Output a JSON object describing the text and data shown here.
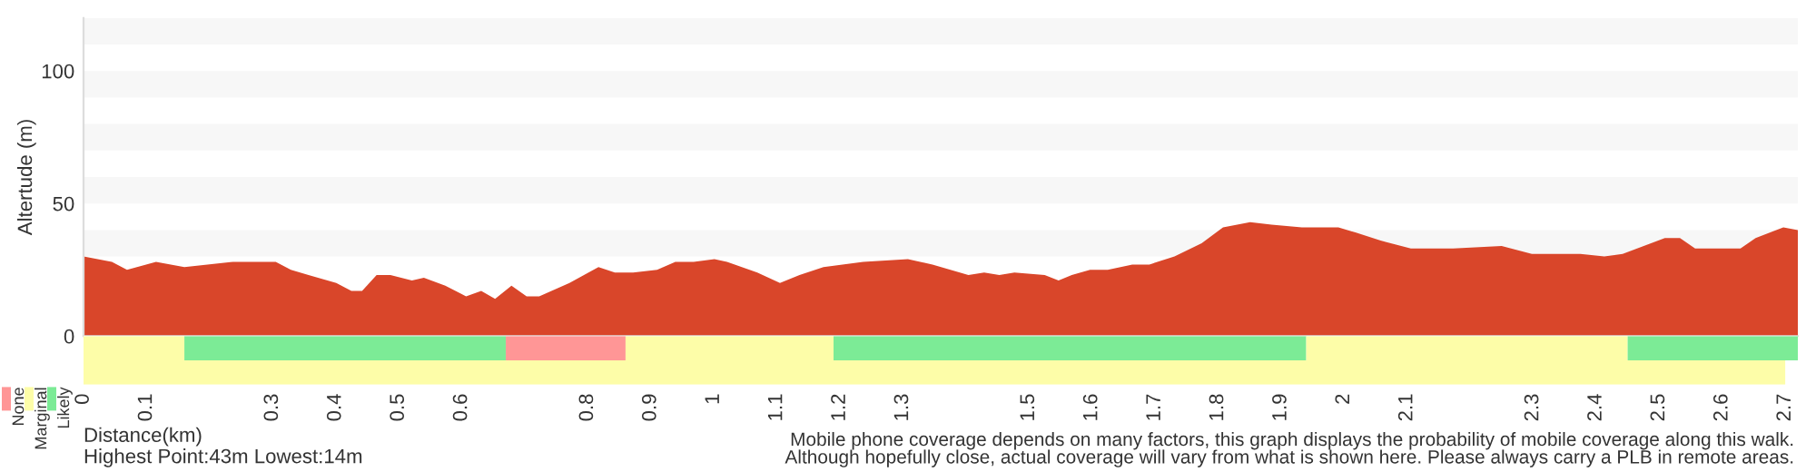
{
  "chart_data": [
    {
      "type": "area",
      "ylabel": "Altertude (m)",
      "xlim": [
        0,
        2.72
      ],
      "ylim": [
        0,
        120
      ],
      "yticks": [
        0,
        50,
        100
      ],
      "tick_labels": "y",
      "grid": false,
      "x": [
        0,
        0.045,
        0.069,
        0.115,
        0.16,
        0.237,
        0.305,
        0.329,
        0.357,
        0.401,
        0.425,
        0.442,
        0.465,
        0.487,
        0.521,
        0.54,
        0.574,
        0.607,
        0.631,
        0.653,
        0.679,
        0.703,
        0.723,
        0.771,
        0.817,
        0.843,
        0.872,
        0.91,
        0.939,
        0.968,
        1.001,
        1.021,
        1.069,
        1.105,
        1.136,
        1.174,
        1.237,
        1.308,
        1.347,
        1.404,
        1.429,
        1.453,
        1.477,
        1.525,
        1.547,
        1.568,
        1.597,
        1.625,
        1.664,
        1.691,
        1.731,
        1.774,
        1.808,
        1.851,
        1.885,
        1.933,
        1.991,
        2.019,
        2.058,
        2.106,
        2.173,
        2.25,
        2.298,
        2.375,
        2.413,
        2.442,
        2.509,
        2.533,
        2.557,
        2.586,
        2.629,
        2.653,
        2.697,
        2.72
      ],
      "series": [
        {
          "color": "#d9462a",
          "values": [
            30,
            28,
            25,
            28,
            26,
            28,
            28,
            25,
            23,
            20,
            17,
            17,
            23,
            23,
            21,
            22,
            19,
            15,
            17,
            14,
            19,
            15,
            15,
            20,
            26,
            24,
            24,
            25,
            28,
            28,
            29,
            28,
            24,
            20,
            23,
            26,
            28,
            29,
            27,
            23,
            24,
            23,
            24,
            23,
            21,
            23,
            25,
            25,
            27,
            27,
            30,
            35,
            41,
            43,
            42,
            41,
            41,
            39,
            36,
            33,
            33,
            34,
            31,
            31,
            30,
            31,
            37,
            37,
            33,
            33,
            33,
            37,
            41,
            40
          ]
        }
      ],
      "bands": [
        {
          "axis": "y",
          "from": 30,
          "to": 40,
          "color": "#f7f7f7"
        },
        {
          "axis": "y",
          "from": 50,
          "to": 60,
          "color": "#f7f7f7"
        },
        {
          "axis": "y",
          "from": 70,
          "to": 80,
          "color": "#f7f7f7"
        },
        {
          "axis": "y",
          "from": 90,
          "to": 100,
          "color": "#f7f7f7"
        },
        {
          "axis": "y",
          "from": 110,
          "to": 120,
          "color": "#f7f7f7"
        }
      ]
    },
    {
      "type": "bar",
      "orientation": "horizontal",
      "stacked": true,
      "categories": [
        null,
        null
      ],
      "xlabel": "Distance(km)",
      "xlim": [
        0,
        2.72
      ],
      "tick_labels": "x",
      "legend": "bottom left",
      "xticks": [
        0,
        0.1,
        0.3,
        0.4,
        0.5,
        0.6,
        0.8,
        0.9,
        1,
        1.1,
        1.2,
        1.3,
        1.5,
        1.6,
        1.7,
        1.8,
        1.9,
        2,
        2.1,
        2.3,
        2.4,
        2.5,
        2.6,
        2.7
      ],
      "series": [
        {
          "name": "Marginal",
          "color": "#fdfda8",
          "values": [
            0.16,
            2.7
          ]
        },
        {
          "name": "Likely",
          "color": "#7ceb96",
          "values": [
            0.51,
            0
          ]
        },
        {
          "name": "None",
          "color": "#ff9696",
          "values": [
            0.19,
            0
          ]
        },
        {
          "color": "#fdfda8",
          "values": [
            0.33,
            0
          ]
        },
        {
          "color": "#7ceb96",
          "values": [
            0.75,
            0
          ]
        },
        {
          "color": "#fdfda8",
          "values": [
            0.51,
            0
          ]
        },
        {
          "color": "#7ceb96",
          "values": [
            0.28,
            0
          ]
        }
      ],
      "annotations": [
        "Highest Point:43m Lowest:14m",
        "Mobile phone coverage depends on many factors, this graph displays the probability of mobile coverage along this walk.",
        "Although hopefully close, actual coverage will vary from what is shown here. Please always carry a PLB in remote areas."
      ]
    }
  ]
}
